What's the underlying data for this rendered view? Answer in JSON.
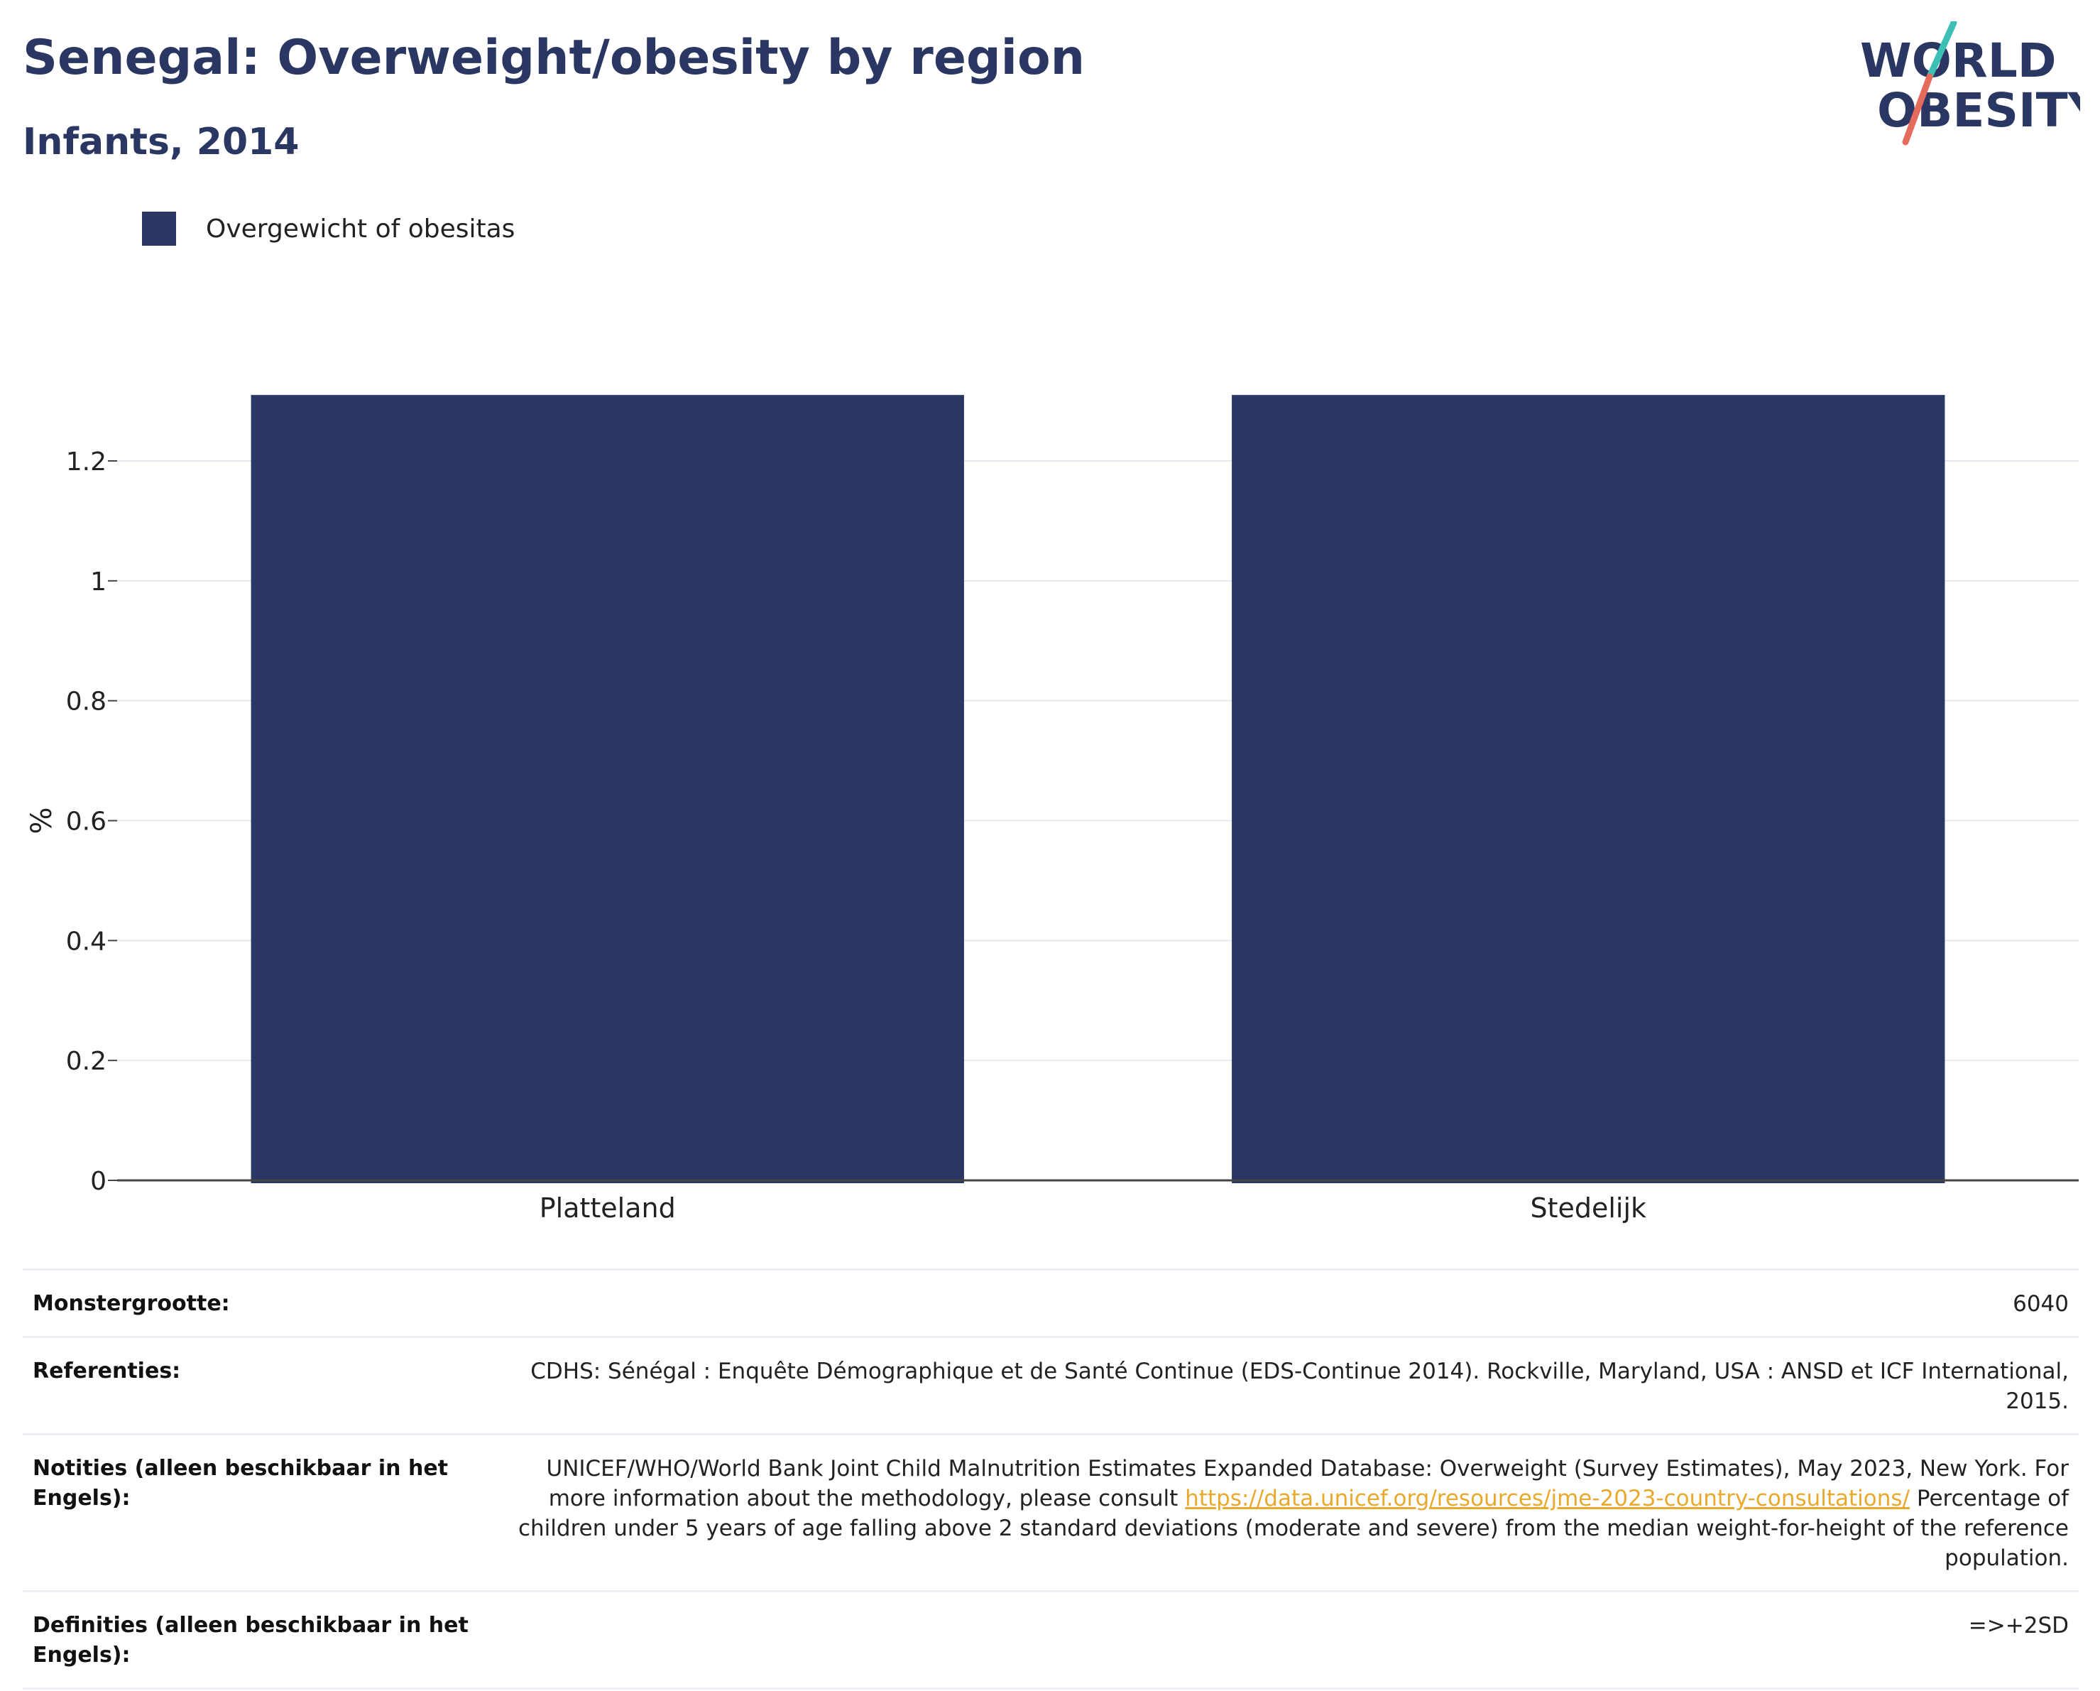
{
  "header": {
    "title": "Senegal: Overweight/obesity by region",
    "subtitle": "Infants, 2014"
  },
  "logo": {
    "line1": "WORLD",
    "line2": "OBESITY",
    "colors": {
      "text": "#2a3762",
      "slash_top": "#3cbfb4",
      "slash_bottom": "#e56b5d"
    }
  },
  "legend": {
    "label": "Overgewicht of obesitas",
    "color": "#2a3762"
  },
  "chart_data": {
    "type": "bar",
    "categories": [
      "Platteland",
      "Stedelijk"
    ],
    "series": [
      {
        "name": "Overgewicht of obesitas",
        "values": [
          1.31,
          1.31
        ],
        "color": "#2a3762"
      }
    ],
    "ylabel": "%",
    "xlabel": "",
    "ylim": [
      0,
      1.4
    ],
    "yticks": [
      0,
      0.2,
      0.4,
      0.6,
      0.8,
      1,
      1.2
    ],
    "ytick_labels": [
      "0",
      "0.2",
      "0.4",
      "0.6",
      "0.8",
      "1",
      "1.2"
    ],
    "grid": true,
    "legend_position": "top-left"
  },
  "info": {
    "sample_size": {
      "label": "Monstergrootte:",
      "value": "6040"
    },
    "references": {
      "label": "Referenties:",
      "value": "CDHS: Sénégal : Enquête Démographique et de Santé Continue (EDS-Continue 2014). Rockville, Maryland, USA : ANSD et ICF International, 2015."
    },
    "notes": {
      "label": "Notities (alleen beschikbaar in het Engels):",
      "text_before": "UNICEF/WHO/World Bank Joint Child Malnutrition Estimates Expanded Database: Overweight (Survey Estimates), May 2023, New York. For more information about the methodology, please consult ",
      "link": "https://data.unicef.org/resources/jme-2023-country-consultations/",
      "text_after": " Percentage of children under 5 years of age falling above 2 standard deviations (moderate and severe) from the median weight-for-height of the reference population."
    },
    "definitions": {
      "label": "Definities (alleen beschikbaar in het Engels):",
      "value": "=>+2SD"
    }
  }
}
